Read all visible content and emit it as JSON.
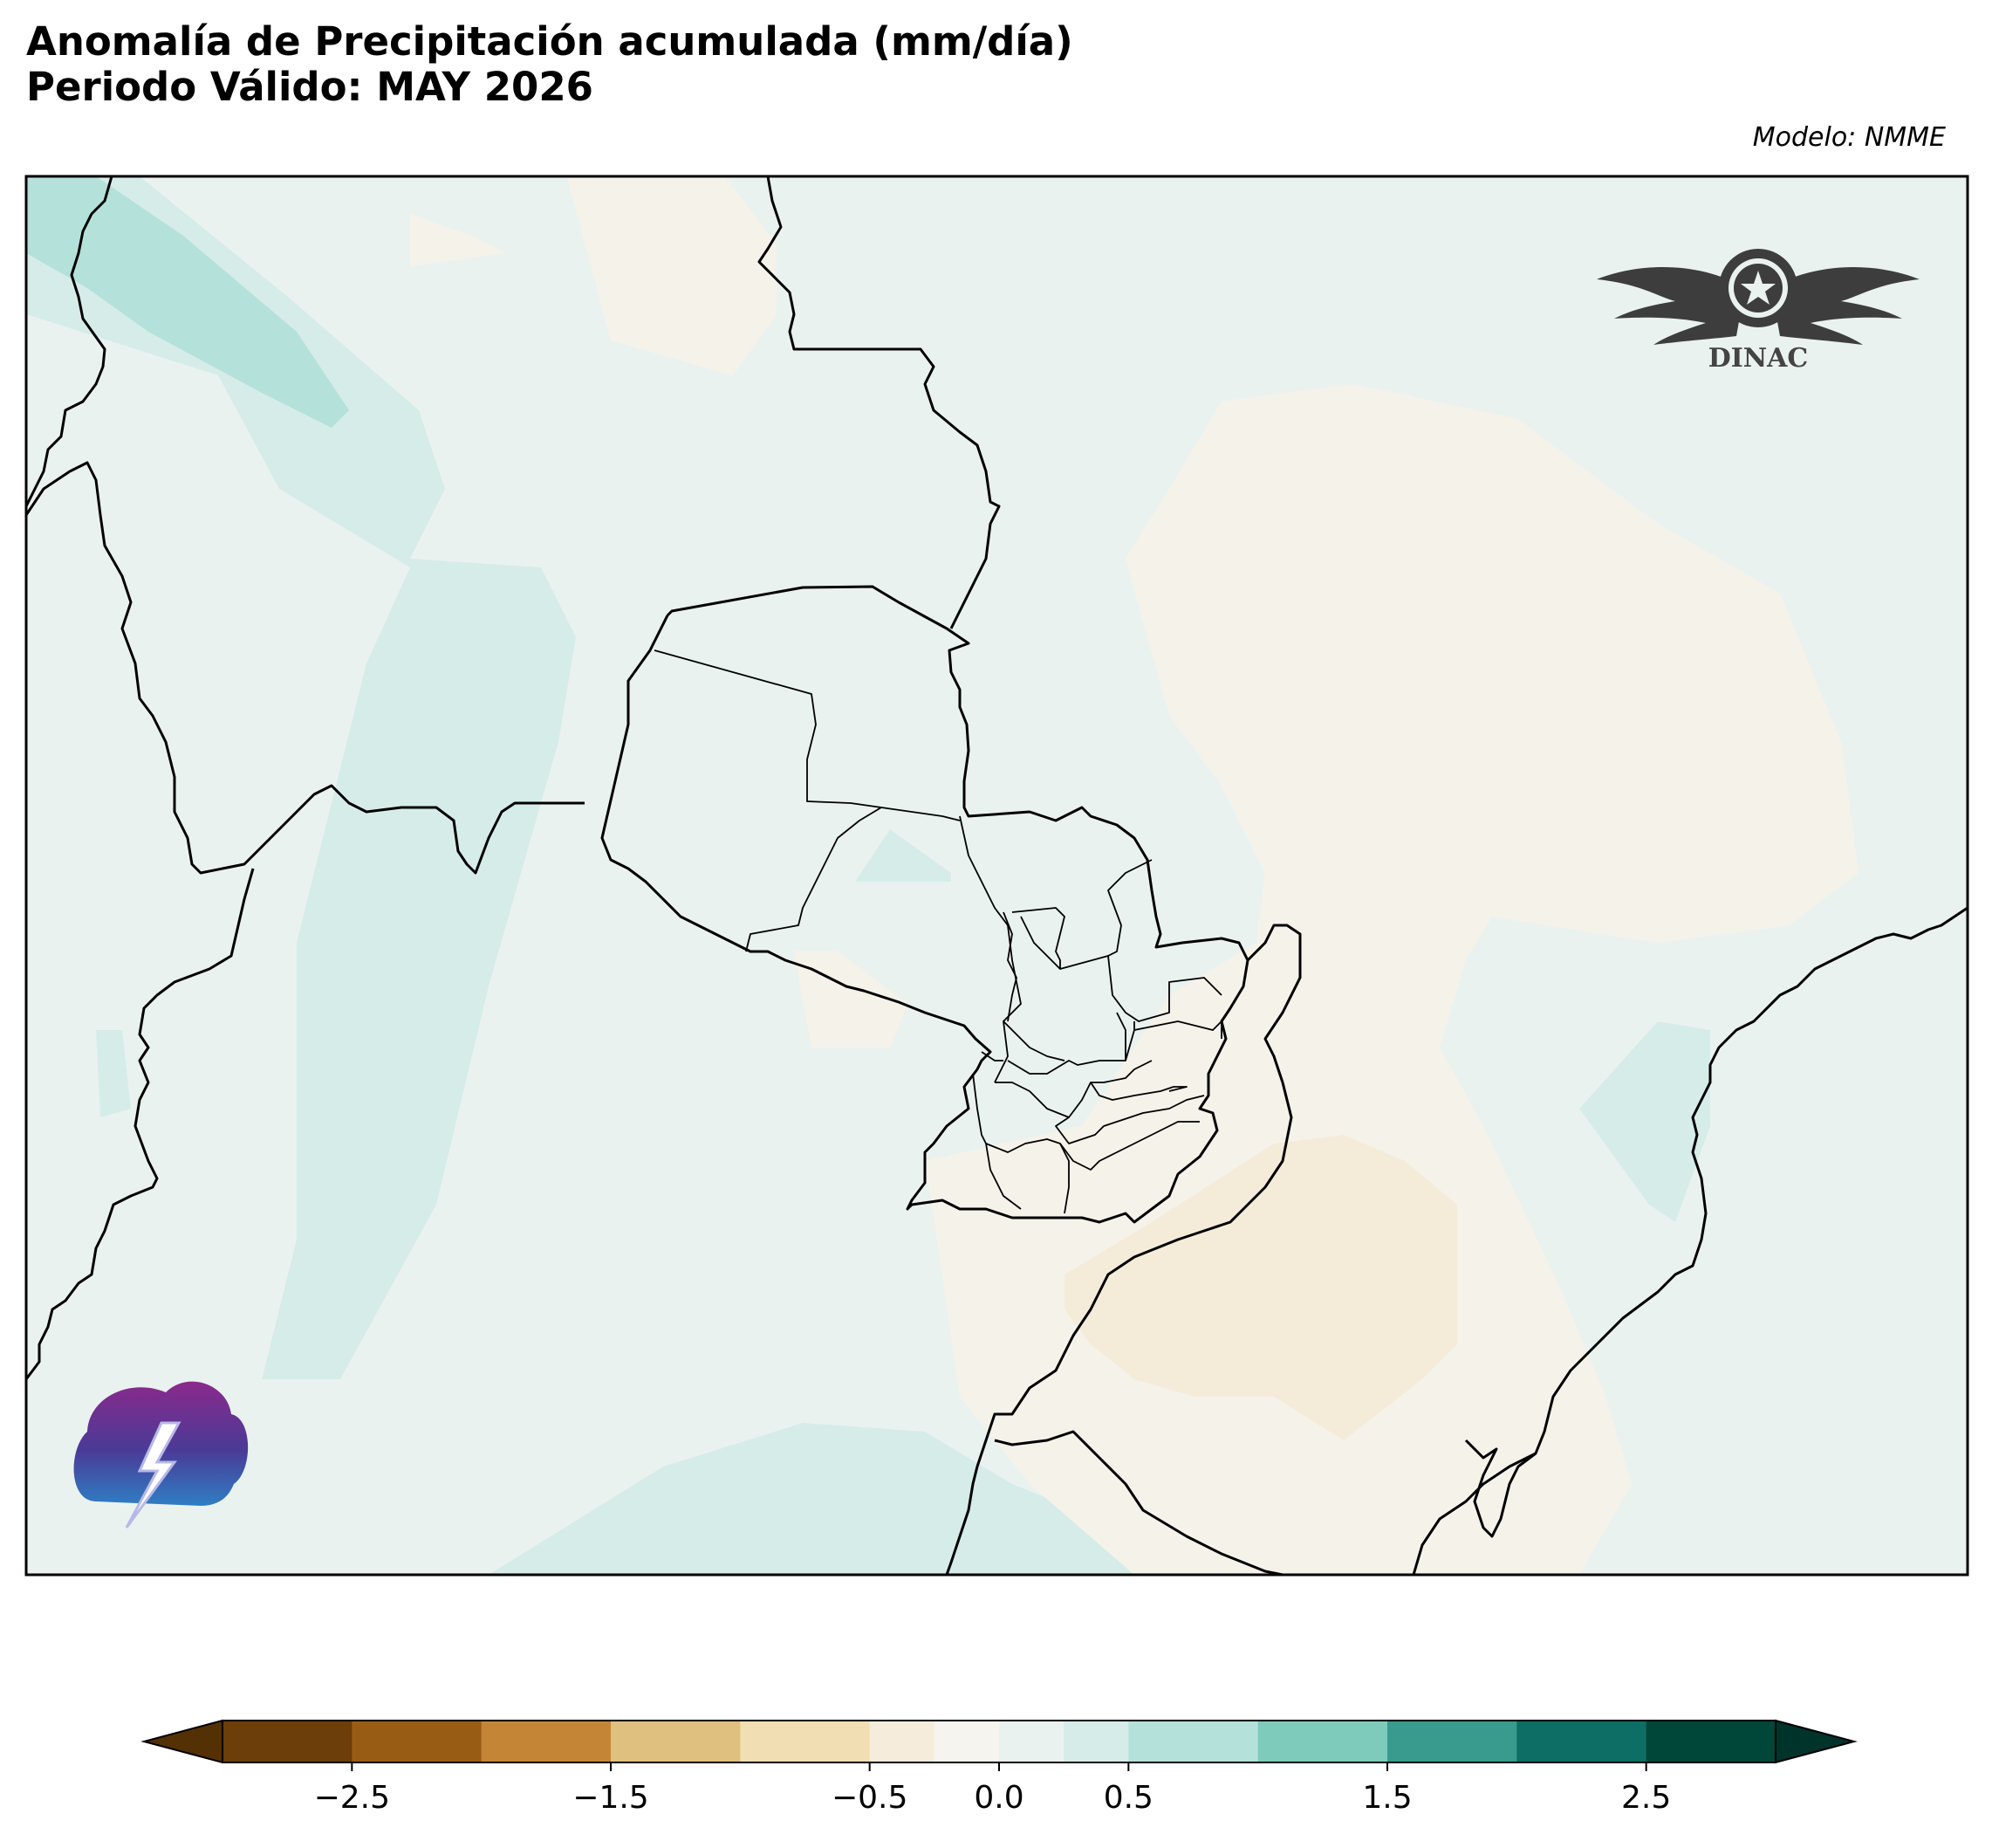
{
  "title": "Anomalía de Precipitación acumulada (mm/día)",
  "subtitle": "Periodo Válido: MAY 2026",
  "model_label": "Modelo: NMME",
  "logo_text": "DINAC",
  "colorbar": {
    "ticks": [
      "−2.5",
      "−1.5",
      "−0.5",
      "0.0",
      "0.5",
      "1.5",
      "2.5"
    ],
    "tick_values": [
      -2.5,
      -1.5,
      -0.5,
      0.0,
      0.5,
      1.5,
      2.5
    ],
    "levels": [
      -3.0,
      -2.5,
      -2.0,
      -1.5,
      -1.0,
      -0.5,
      -0.25,
      0.0,
      0.25,
      0.5,
      1.0,
      1.5,
      2.0,
      2.5,
      3.0
    ],
    "colors": [
      "#543005",
      "#6b3e0a",
      "#995c15",
      "#c48636",
      "#dfc07f",
      "#f1dfb3",
      "#f5ecdb",
      "#f5f4ef",
      "#eaf2f0",
      "#d6ece8",
      "#b4e2da",
      "#7ecbbc",
      "#399a8e",
      "#0d6e65",
      "#004639",
      "#00332a"
    ]
  }
}
